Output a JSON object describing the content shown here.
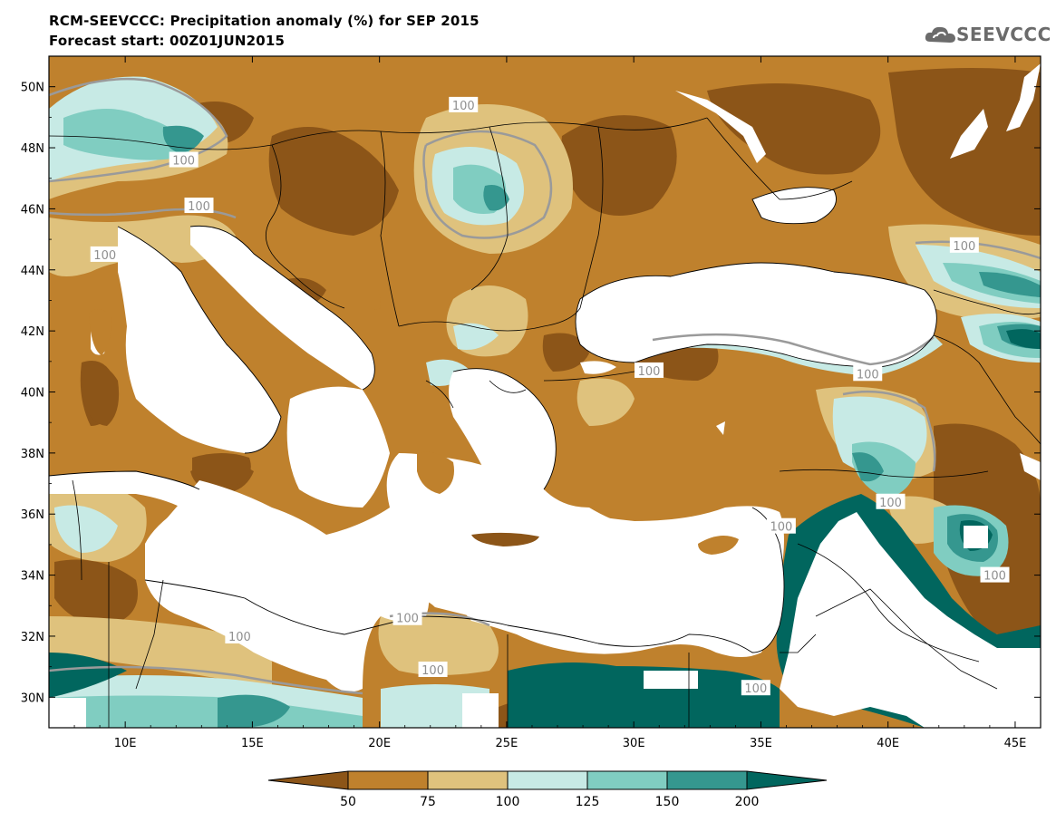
{
  "title": {
    "line1": "RCM-SEEVCCC: Precipitation anomaly (%) for SEP 2015",
    "line2": "Forecast start: 00Z01JUN2015"
  },
  "logo": {
    "text": "SEEVCCC",
    "icon": "cloud-icon"
  },
  "colors": {
    "lt50": "#8c5518",
    "c50_75": "#bf812d",
    "c75_100": "#dfc27d",
    "c100_125": "#c7eae5",
    "c125_150": "#80cdc1",
    "c150_200": "#35978f",
    "gt200": "#01665e",
    "sea": "#ffffff",
    "border": "#000000",
    "contour100": "#9a9a9a"
  },
  "chart_data": {
    "type": "heatmap",
    "variable": "Precipitation anomaly (%)",
    "lon_range": [
      7,
      46
    ],
    "lat_range": [
      29,
      51
    ],
    "x_ticks": [
      "10E",
      "15E",
      "20E",
      "25E",
      "30E",
      "35E",
      "40E",
      "45E"
    ],
    "x_tick_values": [
      10,
      15,
      20,
      25,
      30,
      35,
      40,
      45
    ],
    "y_ticks": [
      "50N",
      "48N",
      "46N",
      "44N",
      "42N",
      "40N",
      "38N",
      "36N",
      "34N",
      "32N",
      "30N"
    ],
    "y_tick_values": [
      50,
      48,
      46,
      44,
      42,
      40,
      38,
      36,
      34,
      32,
      30
    ],
    "colorbar": {
      "levels": [
        "50",
        "75",
        "100",
        "125",
        "150",
        "200"
      ],
      "level_values": [
        50,
        75,
        100,
        125,
        150,
        200
      ],
      "extend": "both"
    },
    "contour_labels": [
      {
        "text": "100",
        "lon": 12.3,
        "lat": 47.6
      },
      {
        "text": "100",
        "lon": 12.9,
        "lat": 46.1
      },
      {
        "text": "100",
        "lon": 9.2,
        "lat": 44.5
      },
      {
        "text": "100",
        "lon": 23.3,
        "lat": 49.4
      },
      {
        "text": "100",
        "lon": 43.0,
        "lat": 44.8
      },
      {
        "text": "100",
        "lon": 30.6,
        "lat": 40.7
      },
      {
        "text": "100",
        "lon": 39.2,
        "lat": 40.6
      },
      {
        "text": "100",
        "lon": 40.1,
        "lat": 36.4
      },
      {
        "text": "100",
        "lon": 35.8,
        "lat": 35.6
      },
      {
        "text": "100",
        "lon": 44.2,
        "lat": 34.0
      },
      {
        "text": "100",
        "lon": 21.1,
        "lat": 32.6
      },
      {
        "text": "100",
        "lon": 14.5,
        "lat": 32.0
      },
      {
        "text": "100",
        "lon": 22.1,
        "lat": 30.9
      },
      {
        "text": "100",
        "lon": 34.8,
        "lat": 30.3
      }
    ]
  }
}
